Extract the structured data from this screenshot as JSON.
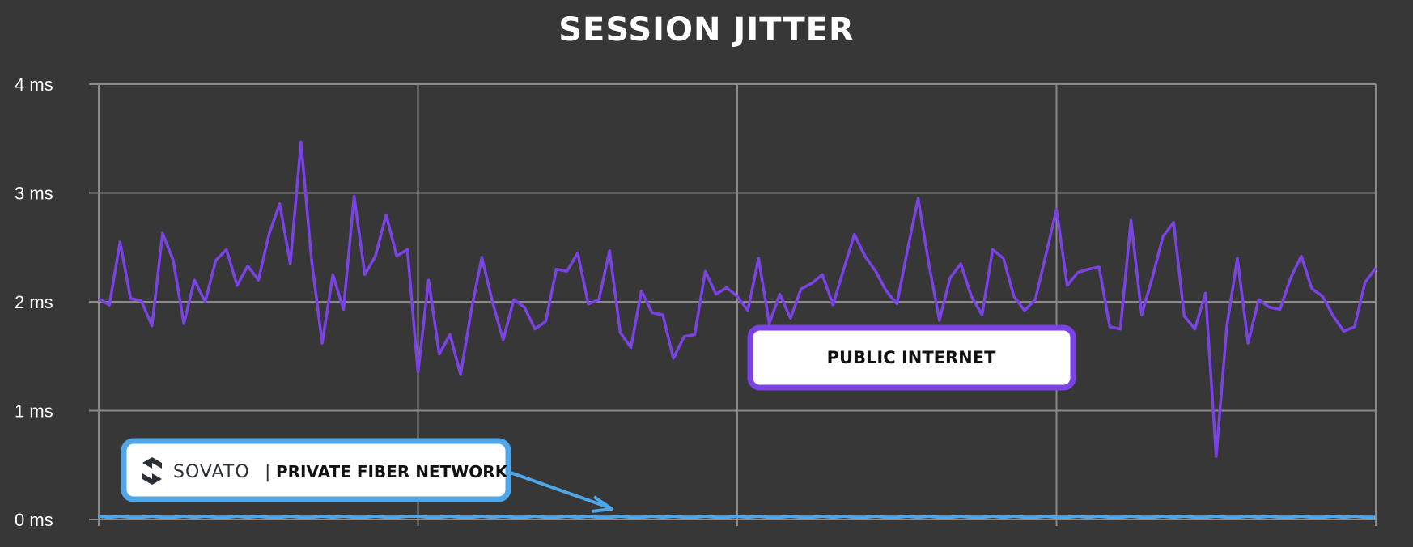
{
  "chart_data": {
    "type": "line",
    "title": "SESSION JITTER",
    "xlabel": "",
    "ylabel": "",
    "ylim": [
      0,
      4
    ],
    "yticks": [
      "0 ms",
      "1 ms",
      "2 ms",
      "3 ms",
      "4 ms"
    ],
    "grid": true,
    "series": [
      {
        "name": "PUBLIC INTERNET",
        "color": "#7b42e6",
        "values": [
          2.03,
          1.97,
          2.55,
          2.03,
          2.01,
          1.78,
          2.63,
          2.38,
          1.8,
          2.2,
          2.0,
          2.38,
          2.48,
          2.15,
          2.33,
          2.2,
          2.62,
          2.9,
          2.35,
          3.47,
          2.38,
          1.62,
          2.25,
          1.93,
          2.97,
          2.25,
          2.42,
          2.8,
          2.42,
          2.48,
          1.35,
          2.2,
          1.52,
          1.7,
          1.33,
          1.92,
          2.41,
          2.0,
          1.65,
          2.02,
          1.95,
          1.75,
          1.82,
          2.3,
          2.28,
          2.45,
          1.98,
          2.02,
          2.47,
          1.72,
          1.58,
          2.1,
          1.9,
          1.88,
          1.48,
          1.68,
          1.7,
          2.28,
          2.07,
          2.13,
          2.05,
          1.92,
          2.4,
          1.8,
          2.07,
          1.85,
          2.12,
          2.17,
          2.25,
          1.97,
          2.3,
          2.62,
          2.42,
          2.28,
          2.1,
          1.98,
          2.48,
          2.95,
          2.35,
          1.83,
          2.22,
          2.35,
          2.05,
          1.88,
          2.48,
          2.4,
          2.05,
          1.92,
          2.02,
          2.43,
          2.85,
          2.15,
          2.27,
          2.3,
          2.32,
          1.77,
          1.75,
          2.75,
          1.88,
          2.22,
          2.6,
          2.73,
          1.87,
          1.75,
          2.08,
          0.58,
          1.77,
          2.4,
          1.62,
          2.02,
          1.95,
          1.93,
          2.22,
          2.42,
          2.12,
          2.05,
          1.87,
          1.73,
          1.77,
          2.18,
          2.31
        ]
      },
      {
        "name": "PRIVATE FIBER NETWORK",
        "color": "#4fa6e8",
        "values": [
          0.03,
          0.02,
          0.03,
          0.02,
          0.02,
          0.03,
          0.02,
          0.02,
          0.03,
          0.02,
          0.03,
          0.02,
          0.02,
          0.03,
          0.02,
          0.03,
          0.02,
          0.02,
          0.03,
          0.02,
          0.02,
          0.03,
          0.02,
          0.03,
          0.02,
          0.02,
          0.03,
          0.02,
          0.02,
          0.03,
          0.03,
          0.02,
          0.02,
          0.03,
          0.02,
          0.02,
          0.03,
          0.02,
          0.03,
          0.02,
          0.02,
          0.03,
          0.02,
          0.02,
          0.03,
          0.02,
          0.03,
          0.02,
          0.02,
          0.03,
          0.02,
          0.02,
          0.03,
          0.02,
          0.03,
          0.02,
          0.02,
          0.03,
          0.02,
          0.02,
          0.03,
          0.02,
          0.03,
          0.02,
          0.02,
          0.03,
          0.02,
          0.02,
          0.03,
          0.02,
          0.03,
          0.02,
          0.02,
          0.03,
          0.02,
          0.02,
          0.03,
          0.02,
          0.03,
          0.02,
          0.02,
          0.03,
          0.02,
          0.02,
          0.03,
          0.02,
          0.03,
          0.02,
          0.02,
          0.03,
          0.02,
          0.02,
          0.03,
          0.02,
          0.03,
          0.02,
          0.02,
          0.03,
          0.02,
          0.02,
          0.03,
          0.02,
          0.03,
          0.02,
          0.02,
          0.03,
          0.02,
          0.02,
          0.03,
          0.02,
          0.03,
          0.02,
          0.02,
          0.03,
          0.02,
          0.02,
          0.03,
          0.02,
          0.03,
          0.02,
          0.02
        ]
      }
    ],
    "annotations": {
      "public": "PUBLIC INTERNET",
      "private_brand": "SOVATO",
      "private_separator": "|",
      "private_label": "PRIVATE FIBER NETWORK"
    }
  }
}
